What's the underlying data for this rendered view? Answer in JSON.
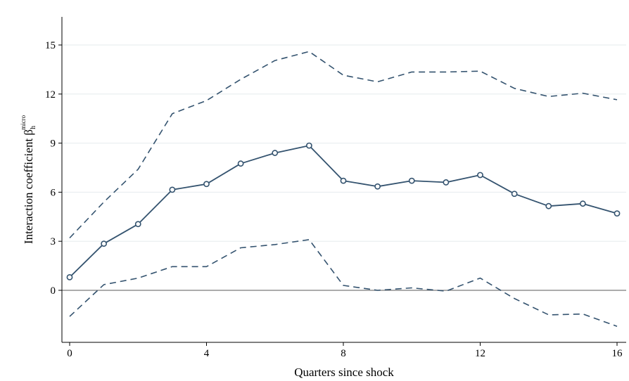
{
  "chart_data": {
    "type": "line",
    "xlabel": "Quarters since shock",
    "ylabel": {
      "main": "Interaction coefficient β",
      "subscript": "h",
      "superscript": "micro"
    },
    "xlim": [
      0,
      16
    ],
    "ylim": [
      -3.2,
      16.7
    ],
    "xticks": [
      0,
      4,
      8,
      12,
      16
    ],
    "yticks": [
      0,
      3,
      6,
      9,
      12,
      15
    ],
    "grid": true,
    "reference_line_y": 0,
    "x": [
      0,
      1,
      2,
      3,
      4,
      5,
      6,
      7,
      8,
      9,
      10,
      11,
      12,
      13,
      14,
      15,
      16
    ],
    "series": [
      {
        "role": "estimate",
        "style": "solid-markers",
        "values": [
          0.8,
          2.85,
          4.05,
          6.15,
          6.5,
          7.75,
          8.4,
          8.85,
          6.7,
          6.35,
          6.7,
          6.6,
          7.05,
          5.9,
          5.15,
          5.3,
          4.7
        ]
      },
      {
        "role": "upper-bound",
        "style": "dashed",
        "values": [
          3.2,
          5.4,
          7.4,
          10.8,
          11.6,
          12.9,
          14.05,
          14.6,
          13.15,
          12.75,
          13.35,
          13.35,
          13.4,
          12.35,
          11.85,
          12.05,
          11.65
        ]
      },
      {
        "role": "lower-bound",
        "style": "dashed",
        "values": [
          -1.6,
          0.35,
          0.75,
          1.45,
          1.45,
          2.6,
          2.8,
          3.1,
          0.3,
          0.0,
          0.15,
          -0.05,
          0.75,
          -0.5,
          -1.5,
          -1.45,
          -2.2
        ]
      }
    ],
    "colors": {
      "line": "#34536f",
      "grid": "#e6ebee",
      "zero_line": "#7a7a7a",
      "axis": "#000000"
    }
  }
}
